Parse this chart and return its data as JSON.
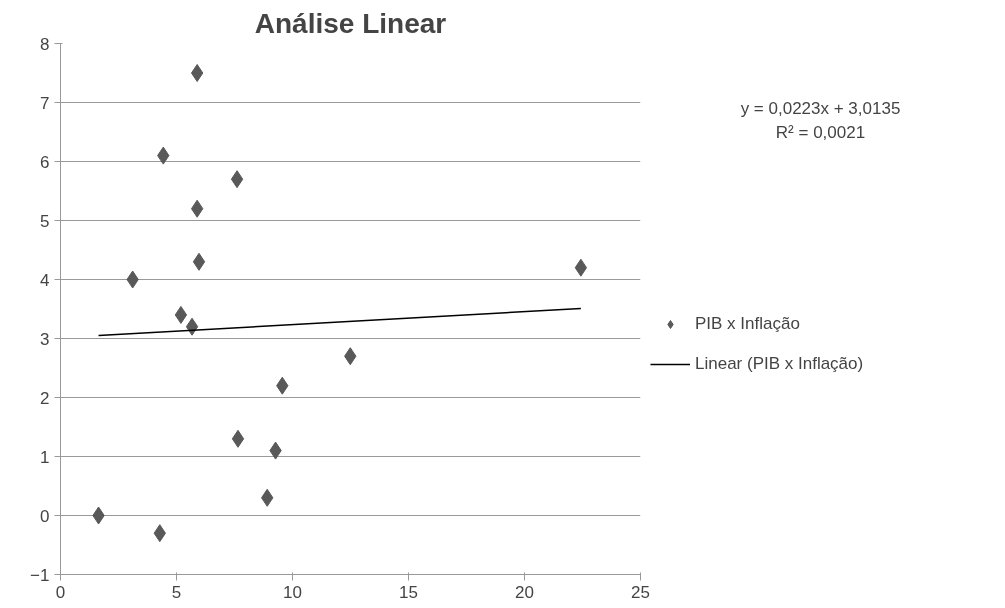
{
  "chart_data": {
    "type": "scatter",
    "title": "Análise Linear",
    "xlim": [
      0,
      25
    ],
    "xticks": [
      0,
      5,
      10,
      15,
      20,
      25
    ],
    "ylim": [
      -1,
      8
    ],
    "yticks": [
      -1,
      0,
      1,
      2,
      3,
      4,
      5,
      6,
      7,
      8
    ],
    "grid": "y",
    "legend": "right",
    "annotations": [
      "y = 0,0223x + 3,0135",
      "R² = 0,0021"
    ],
    "series": [
      {
        "name": "PIB x Inflação",
        "marker": "diamond",
        "color": "#595959",
        "x": [
          1.64,
          4.28,
          3.11,
          4.43,
          5.89,
          5.89,
          7.61,
          5.97,
          5.19,
          5.67,
          12.49,
          9.56,
          7.65,
          9.27,
          8.91,
          22.43
        ],
        "values": [
          0.0,
          -0.3,
          4.0,
          6.1,
          7.5,
          5.2,
          5.7,
          4.3,
          3.4,
          3.2,
          2.7,
          2.2,
          1.3,
          1.1,
          0.3,
          4.2
        ]
      },
      {
        "name": "Linear (PIB x Inflação)",
        "type": "line",
        "marker": "none",
        "color": "#000000",
        "x": [
          1.64,
          22.43
        ],
        "values": [
          3.05,
          3.51
        ]
      }
    ]
  }
}
